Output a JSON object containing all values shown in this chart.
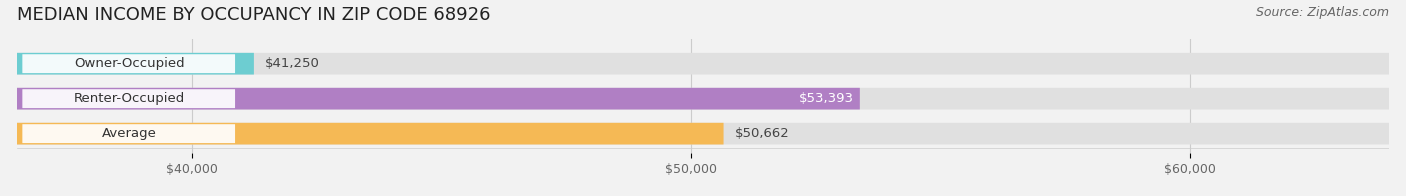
{
  "title": "MEDIAN INCOME BY OCCUPANCY IN ZIP CODE 68926",
  "source": "Source: ZipAtlas.com",
  "categories": [
    "Owner-Occupied",
    "Renter-Occupied",
    "Average"
  ],
  "values": [
    41250,
    53393,
    50662
  ],
  "bar_colors": [
    "#6dcdd1",
    "#b07fc4",
    "#f5b955"
  ],
  "label_colors": [
    "#333333",
    "#ffffff",
    "#333333"
  ],
  "value_inside": [
    false,
    true,
    false
  ],
  "xlim_min": 36500,
  "xlim_max": 64000,
  "xticks": [
    40000,
    50000,
    60000
  ],
  "xtick_labels": [
    "$40,000",
    "$50,000",
    "$60,000"
  ],
  "value_labels": [
    "$41,250",
    "$53,393",
    "$50,662"
  ],
  "background_color": "#f2f2f2",
  "bar_background_color": "#e0e0e0",
  "label_bg_color": "#ffffff",
  "title_fontsize": 13,
  "source_fontsize": 9,
  "label_fontsize": 9.5,
  "value_fontsize": 9.5,
  "tick_fontsize": 9
}
